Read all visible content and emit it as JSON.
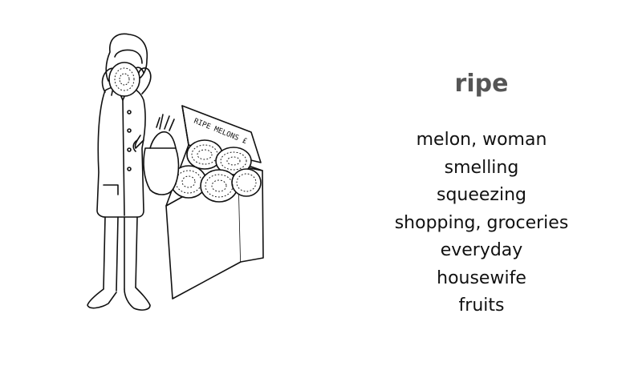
{
  "headword": "ripe",
  "keywords": [
    "melon, woman",
    "smelling",
    "squeezing",
    "shopping, groceries",
    "everyday",
    "housewife",
    "fruits"
  ],
  "illustration": {
    "sign_text": "RIPE MELONS £",
    "ink_color": "#111111"
  }
}
